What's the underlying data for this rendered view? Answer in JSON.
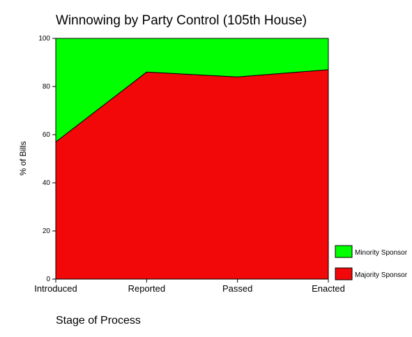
{
  "chart_data": {
    "type": "area",
    "stacked": true,
    "title": "Winnowing by Party Control (105th House)",
    "xlabel": "Stage of Process",
    "ylabel": "% of Bills",
    "categories": [
      "Introduced",
      "Reported",
      "Passed",
      "Enacted"
    ],
    "ylim": [
      0,
      100
    ],
    "yticks": [
      0,
      20,
      40,
      60,
      80,
      100
    ],
    "grid": false,
    "legend_position": "bottom-right",
    "series": [
      {
        "name": "Majority Sponsor",
        "values": [
          57,
          86,
          84,
          87
        ],
        "color": "#f20808"
      },
      {
        "name": "Minority Sponsor",
        "values": [
          43,
          14,
          16,
          13
        ],
        "color": "#00ff00"
      }
    ],
    "legend_order": [
      "Minority Sponsor",
      "Majority Sponsor"
    ]
  }
}
